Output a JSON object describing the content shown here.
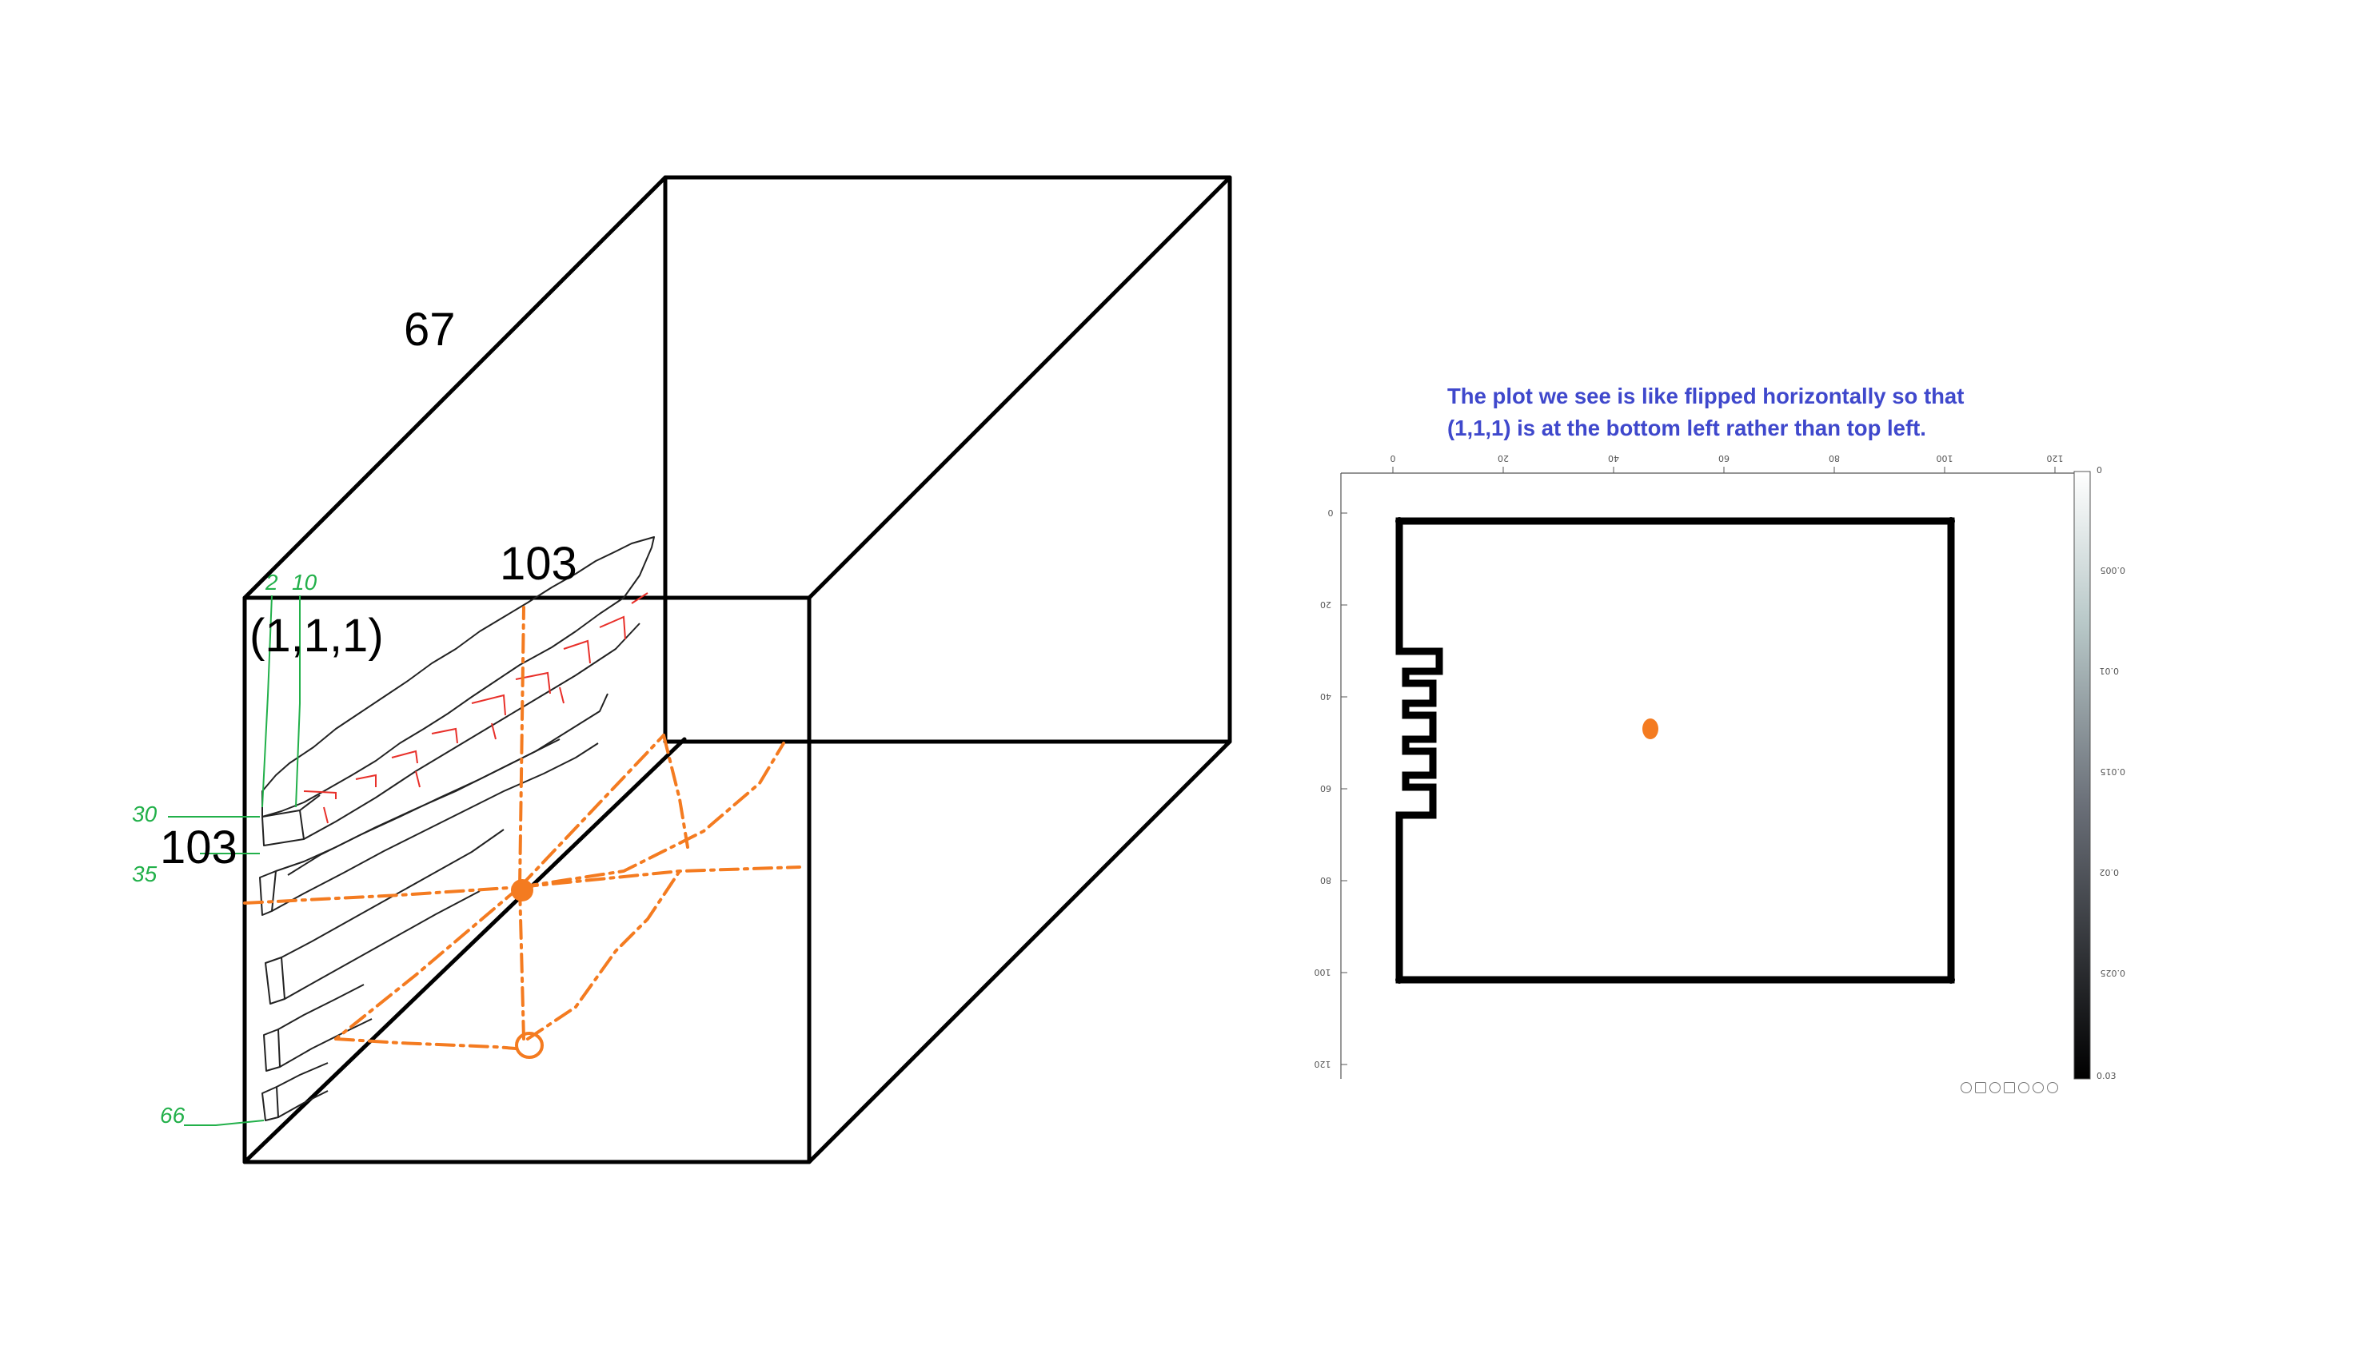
{
  "note": {
    "line1": "The plot we see is like flipped horizontally so that",
    "line2": "(1,1,1) is at the bottom left rather than top left."
  },
  "cube_labels": {
    "depth": "67",
    "top_width": "103",
    "origin": "(1,1,1)",
    "height": "103"
  },
  "green_labels": {
    "a": "2",
    "b": "10",
    "c": "30",
    "d": "35",
    "e": "66"
  },
  "plot": {
    "x_ticks": [
      "0",
      "20",
      "40",
      "60",
      "80",
      "100",
      "120"
    ],
    "y_ticks": [
      "0",
      "20",
      "40",
      "60",
      "80",
      "100",
      "120"
    ],
    "colorbar_ticks": [
      "0",
      "0.005",
      "0.01",
      "0.015",
      "0.02",
      "0.025",
      "0.03"
    ],
    "toolbar_icons": [
      "cursor-icon",
      "save-icon",
      "zoom-in-icon",
      "pan-icon",
      "rotate-icon",
      "zoom-out-icon",
      "home-icon"
    ]
  },
  "colors": {
    "orange": "#f47b20",
    "green": "#22b04a",
    "red": "#e8302a",
    "note_blue": "#3f48cc"
  }
}
